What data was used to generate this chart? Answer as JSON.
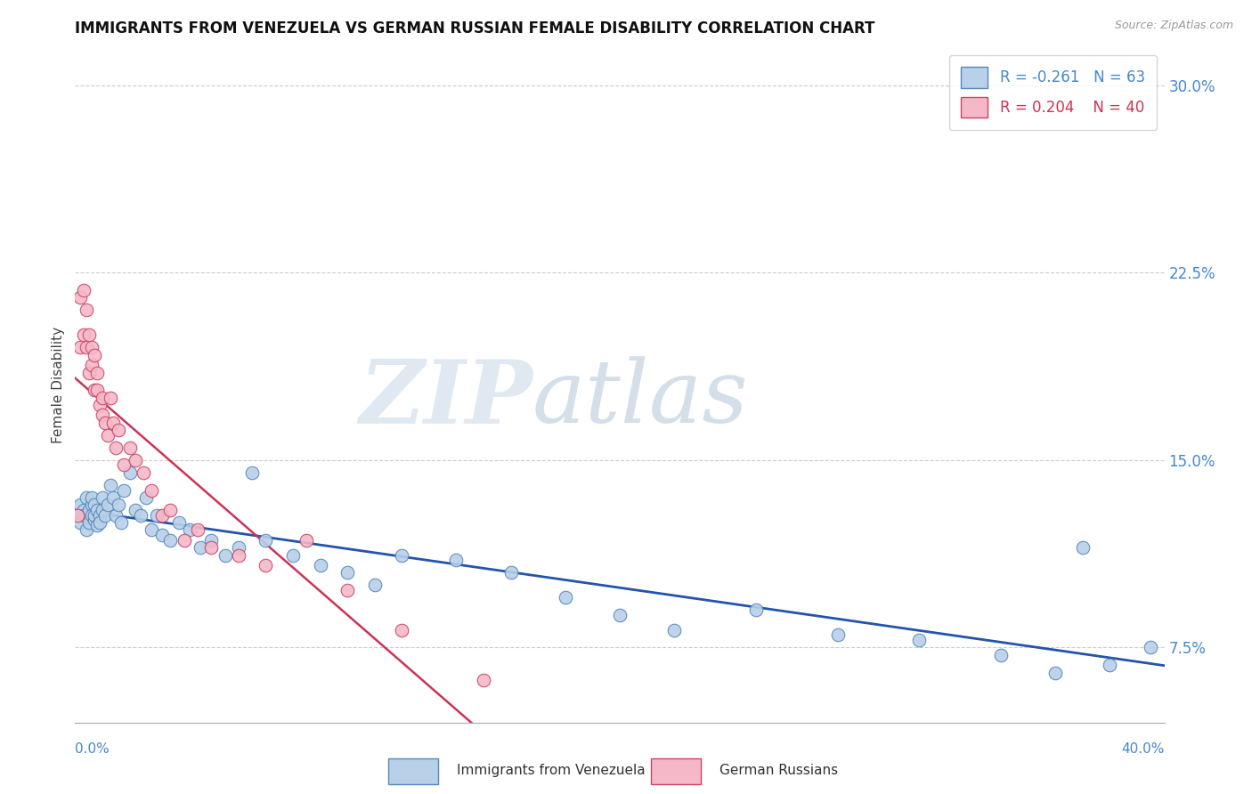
{
  "title": "IMMIGRANTS FROM VENEZUELA VS GERMAN RUSSIAN FEMALE DISABILITY CORRELATION CHART",
  "source": "Source: ZipAtlas.com",
  "ylabel": "Female Disability",
  "xlim": [
    0.0,
    0.4
  ],
  "ylim": [
    0.045,
    0.315
  ],
  "yticks": [
    0.075,
    0.15,
    0.225,
    0.3
  ],
  "ytick_labels": [
    "7.5%",
    "15.0%",
    "22.5%",
    "30.0%"
  ],
  "series1_label": "Immigrants from Venezuela",
  "series1_R": -0.261,
  "series1_N": 63,
  "series1_color": "#b8d0e8",
  "series1_edge": "#5588bb",
  "series2_label": "German Russians",
  "series2_R": 0.204,
  "series2_N": 40,
  "series2_color": "#f4b8c8",
  "series2_edge": "#cc4466",
  "trendline1_color": "#2255aa",
  "trendline2_color": "#cc3355",
  "background_color": "#ffffff",
  "watermark_zip": "ZIP",
  "watermark_atlas": "atlas",
  "title_fontsize": 12,
  "legend_fontsize": 12,
  "series1_x": [
    0.001,
    0.002,
    0.002,
    0.003,
    0.003,
    0.004,
    0.004,
    0.005,
    0.005,
    0.006,
    0.006,
    0.006,
    0.007,
    0.007,
    0.007,
    0.008,
    0.008,
    0.009,
    0.009,
    0.01,
    0.01,
    0.011,
    0.012,
    0.013,
    0.014,
    0.015,
    0.016,
    0.017,
    0.018,
    0.02,
    0.022,
    0.024,
    0.026,
    0.028,
    0.03,
    0.032,
    0.035,
    0.038,
    0.042,
    0.046,
    0.05,
    0.055,
    0.06,
    0.065,
    0.07,
    0.08,
    0.09,
    0.1,
    0.11,
    0.12,
    0.14,
    0.16,
    0.18,
    0.2,
    0.22,
    0.25,
    0.28,
    0.31,
    0.34,
    0.36,
    0.37,
    0.38,
    0.395
  ],
  "series1_y": [
    0.128,
    0.132,
    0.125,
    0.13,
    0.128,
    0.135,
    0.122,
    0.13,
    0.125,
    0.132,
    0.128,
    0.135,
    0.126,
    0.128,
    0.132,
    0.124,
    0.13,
    0.128,
    0.125,
    0.135,
    0.13,
    0.128,
    0.132,
    0.14,
    0.135,
    0.128,
    0.132,
    0.125,
    0.138,
    0.145,
    0.13,
    0.128,
    0.135,
    0.122,
    0.128,
    0.12,
    0.118,
    0.125,
    0.122,
    0.115,
    0.118,
    0.112,
    0.115,
    0.145,
    0.118,
    0.112,
    0.108,
    0.105,
    0.1,
    0.112,
    0.11,
    0.105,
    0.095,
    0.088,
    0.082,
    0.09,
    0.08,
    0.078,
    0.072,
    0.065,
    0.115,
    0.068,
    0.075
  ],
  "series2_x": [
    0.001,
    0.002,
    0.002,
    0.003,
    0.003,
    0.004,
    0.004,
    0.005,
    0.005,
    0.006,
    0.006,
    0.007,
    0.007,
    0.008,
    0.008,
    0.009,
    0.01,
    0.01,
    0.011,
    0.012,
    0.013,
    0.014,
    0.015,
    0.016,
    0.018,
    0.02,
    0.022,
    0.025,
    0.028,
    0.032,
    0.035,
    0.04,
    0.045,
    0.05,
    0.06,
    0.07,
    0.085,
    0.1,
    0.12,
    0.15
  ],
  "series2_y": [
    0.128,
    0.215,
    0.195,
    0.2,
    0.218,
    0.195,
    0.21,
    0.185,
    0.2,
    0.188,
    0.195,
    0.178,
    0.192,
    0.185,
    0.178,
    0.172,
    0.168,
    0.175,
    0.165,
    0.16,
    0.175,
    0.165,
    0.155,
    0.162,
    0.148,
    0.155,
    0.15,
    0.145,
    0.138,
    0.128,
    0.13,
    0.118,
    0.122,
    0.115,
    0.112,
    0.108,
    0.118,
    0.098,
    0.082,
    0.062
  ]
}
